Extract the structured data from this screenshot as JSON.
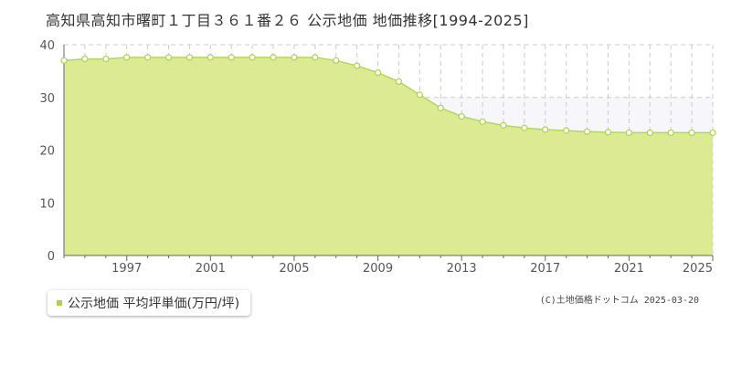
{
  "title": "高知県高知市曙町１丁目３６１番２６ 公示地価 地価推移[1994-2025]",
  "legend_label": "公示地価 平均坪単価(万円/坪)",
  "copyright": "(C)土地価格ドットコム 2025-03-20",
  "colors": {
    "area": "#dceb93",
    "line": "#b6d65a",
    "marker": "#a9d44b",
    "shade": "#f7f6fb",
    "grid": "#cccccc"
  },
  "chart_data": {
    "type": "area",
    "x": [
      1994,
      1995,
      1996,
      1997,
      1998,
      1999,
      2000,
      2001,
      2002,
      2003,
      2004,
      2005,
      2006,
      2007,
      2008,
      2009,
      2010,
      2011,
      2012,
      2013,
      2014,
      2015,
      2016,
      2017,
      2018,
      2019,
      2020,
      2021,
      2022,
      2023,
      2024,
      2025
    ],
    "series": [
      {
        "name": "公示地価 平均坪単価(万円/坪)",
        "values": [
          37.0,
          37.3,
          37.3,
          37.6,
          37.6,
          37.6,
          37.6,
          37.6,
          37.6,
          37.6,
          37.6,
          37.6,
          37.6,
          37.0,
          36.0,
          34.7,
          33.0,
          30.5,
          28.0,
          26.4,
          25.4,
          24.7,
          24.2,
          23.9,
          23.7,
          23.5,
          23.4,
          23.3,
          23.3,
          23.3,
          23.3,
          23.3
        ]
      }
    ],
    "xlim": [
      1994,
      2025
    ],
    "ylim": [
      0,
      40
    ],
    "y_ticks": [
      0,
      10,
      20,
      30,
      40
    ],
    "x_tick_labels": [
      1997,
      2001,
      2005,
      2009,
      2013,
      2017,
      2021,
      2025
    ],
    "grid": true
  }
}
